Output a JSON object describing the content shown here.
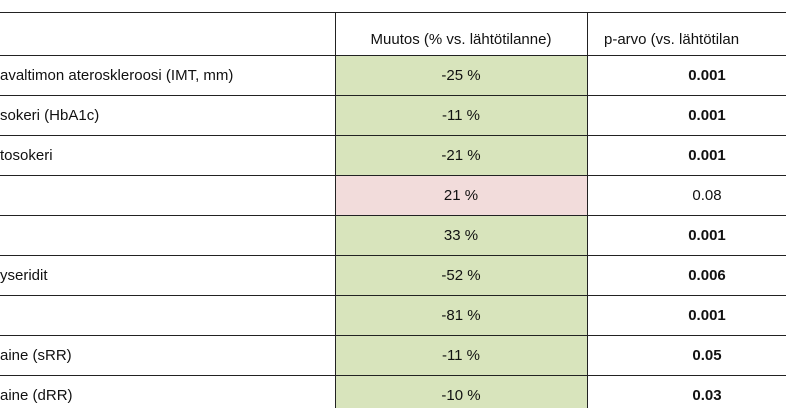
{
  "table": {
    "header": [
      "Muutos (% vs. lähtötilanne)",
      "p-arvo (vs. lähtötilan"
    ],
    "rows": [
      {
        "label": "avaltimon ateroskleroosi (IMT, mm)",
        "change": "-25 %",
        "color": "#d8e4bc",
        "p": "0.001",
        "bold": true
      },
      {
        "label": "sokeri (HbA1c)",
        "change": "-11 %",
        "color": "#d8e4bc",
        "p": "0.001",
        "bold": true
      },
      {
        "label": "tosokeri",
        "change": "-21 %",
        "color": "#d8e4bc",
        "p": "0.001",
        "bold": true
      },
      {
        "change": "21 %",
        "color": "#f2dcdb",
        "p": "0.08",
        "bold": false
      },
      {
        "change": "33 %",
        "color": "#d8e4bc",
        "p": "0.001",
        "bold": true
      },
      {
        "label": "yseridit",
        "change": "-52 %",
        "color": "#d8e4bc",
        "p": "0.006",
        "bold": true
      },
      {
        "change": "-81 %",
        "color": "#d8e4bc",
        "p": "0.001",
        "bold": true
      },
      {
        "label": "aine (sRR)",
        "change": "-11 %",
        "color": "#d8e4bc",
        "p": "0.05",
        "bold": true
      },
      {
        "label": "aine (dRR)",
        "change": "-10 %",
        "color": "#d8e4bc",
        "p": "0.03",
        "bold": true
      }
    ]
  }
}
